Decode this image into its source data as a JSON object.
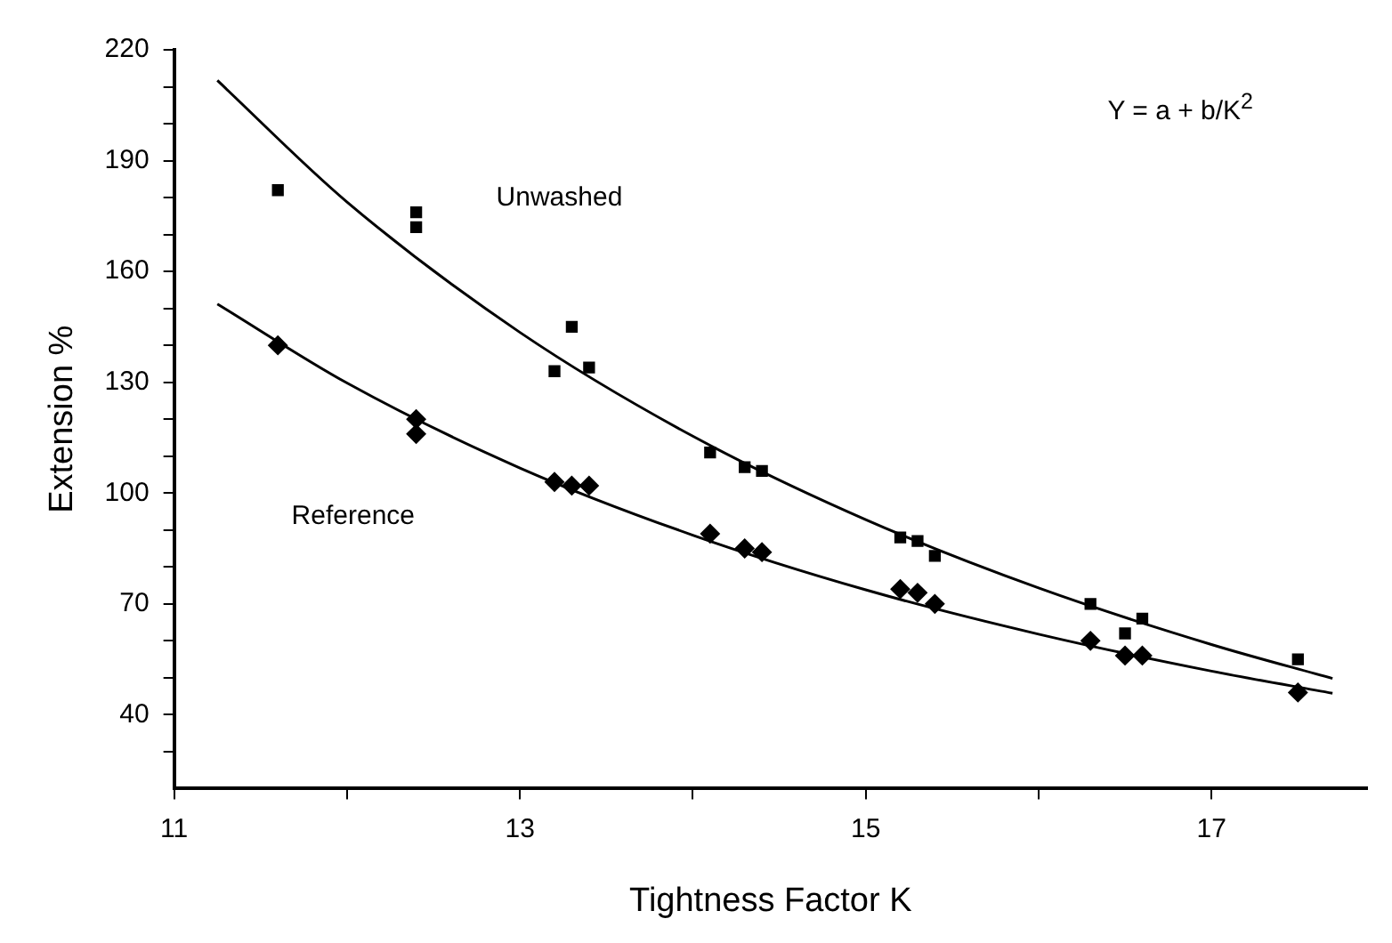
{
  "chart_data": {
    "type": "scatter",
    "xlabel": "Tightness Factor K",
    "ylabel": "Extension %",
    "xlim": [
      11,
      17.9
    ],
    "xticks": [
      11,
      {
        "value": 12,
        "label": null
      },
      13,
      {
        "value": 14,
        "label": null
      },
      15,
      {
        "value": 16,
        "label": null
      },
      17
    ],
    "ylim": [
      20,
      220
    ],
    "yticks": [
      {
        "value": 30,
        "label": null
      },
      40,
      {
        "value": 50,
        "label": null
      },
      {
        "value": 60,
        "label": null
      },
      70,
      {
        "value": 80,
        "label": null
      },
      {
        "value": 90,
        "label": null
      },
      100,
      {
        "value": 110,
        "label": null
      },
      {
        "value": 120,
        "label": null
      },
      130,
      {
        "value": 140,
        "label": null
      },
      {
        "value": 150,
        "label": null
      },
      160,
      {
        "value": 170,
        "label": null
      },
      {
        "value": 180,
        "label": null
      },
      190,
      {
        "value": 200,
        "label": null
      },
      {
        "value": 210,
        "label": null
      },
      220
    ],
    "grid": false,
    "legend": false,
    "annotations": [
      "Y = a + b/K$^{2}$"
    ],
    "series": [
      {
        "name": "Unwashed",
        "marker": "square",
        "color": "#000000",
        "x": [
          11.6,
          12.4,
          12.4,
          13.2,
          13.3,
          13.4,
          14.1,
          14.3,
          14.4,
          15.2,
          15.3,
          15.4,
          16.3,
          16.5,
          16.6,
          17.5
        ],
        "values": [
          182,
          176,
          172,
          133,
          145,
          134,
          111,
          107,
          106,
          88,
          87,
          83,
          70,
          62,
          66,
          55
        ]
      },
      {
        "name": "Reference",
        "marker": "diamond",
        "color": "#000000",
        "x": [
          11.6,
          12.4,
          12.4,
          13.2,
          13.3,
          13.4,
          14.1,
          14.3,
          14.4,
          15.2,
          15.3,
          15.4,
          16.3,
          16.5,
          16.6,
          17.5
        ],
        "values": [
          140,
          120,
          116,
          103,
          102,
          102,
          89,
          85,
          84,
          74,
          73,
          70,
          60,
          56,
          56,
          46
        ]
      },
      {
        "type": "line",
        "marker": "none",
        "line_style": "solid",
        "color": "#000000",
        "x": [
          11.25,
          12,
          13,
          14,
          15,
          16,
          17,
          17.7
        ],
        "values": [
          211.7,
          178.8,
          143.5,
          115.4,
          92.8,
          74.3,
          59,
          49.8
        ]
      },
      {
        "type": "line",
        "marker": "none",
        "line_style": "solid",
        "color": "#000000",
        "x": [
          11.25,
          12,
          13,
          14,
          15,
          16,
          17,
          17.7
        ],
        "values": [
          151.2,
          129.8,
          106.8,
          88.6,
          73.8,
          61.8,
          51.8,
          45.8
        ]
      }
    ]
  }
}
